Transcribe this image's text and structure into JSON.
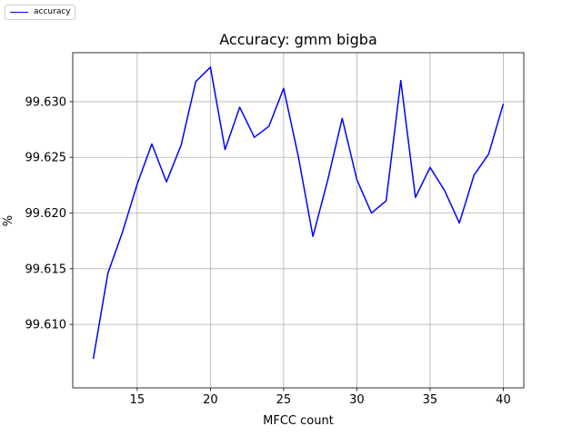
{
  "chart_data": {
    "type": "line",
    "title": "Accuracy: gmm bigba",
    "xlabel": "MFCC count",
    "ylabel": "%",
    "xlim": [
      10.6,
      41.4
    ],
    "ylim": [
      99.6043,
      99.6344
    ],
    "xticks": [
      15,
      20,
      25,
      30,
      35,
      40
    ],
    "xtick_labels": [
      "15",
      "20",
      "25",
      "30",
      "35",
      "40"
    ],
    "yticks": [
      99.61,
      99.615,
      99.62,
      99.625,
      99.63
    ],
    "ytick_labels": [
      "99.610",
      "99.615",
      "99.620",
      "99.625",
      "99.630"
    ],
    "grid": true,
    "legend_position": "top-left",
    "series": [
      {
        "name": "accuracy",
        "color": "#0000ff",
        "x": [
          12,
          13,
          14,
          15,
          16,
          17,
          18,
          19,
          20,
          21,
          22,
          23,
          24,
          25,
          26,
          27,
          28,
          29,
          30,
          31,
          32,
          33,
          34,
          35,
          36,
          37,
          38,
          39,
          40
        ],
        "values": [
          99.6069,
          99.6146,
          99.6183,
          99.6226,
          99.6262,
          99.6228,
          99.6261,
          99.6318,
          99.6331,
          99.6257,
          99.6295,
          99.6268,
          99.6278,
          99.6312,
          99.6251,
          99.6179,
          99.6229,
          99.6285,
          99.623,
          99.62,
          99.6211,
          99.6319,
          99.6214,
          99.6241,
          99.622,
          99.6191,
          99.6234,
          99.6253,
          99.6298
        ]
      }
    ]
  }
}
